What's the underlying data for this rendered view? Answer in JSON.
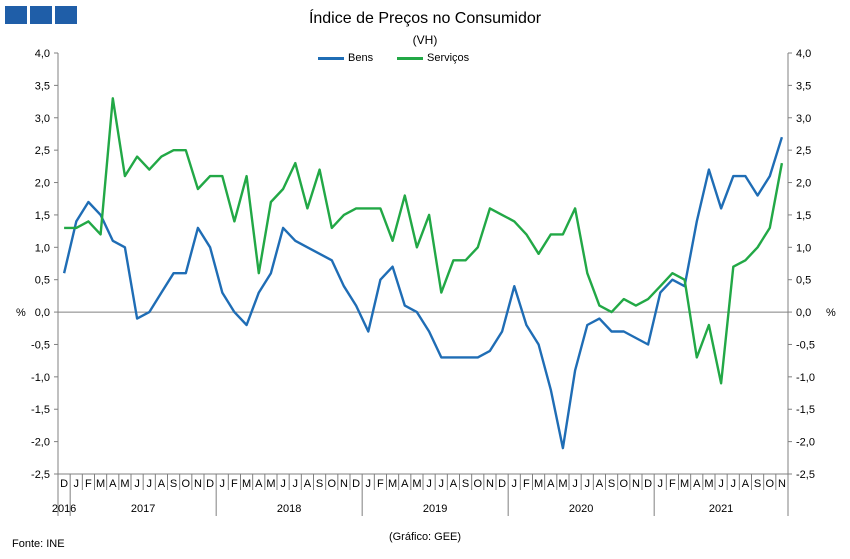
{
  "title": "Índice de Preços no Consumidor",
  "subtitle": "(VH)",
  "source": "Fonte: INE",
  "credit": "(Gráfico: GEE)",
  "colors": {
    "Bens": "#1f6db5",
    "Serviços": "#22a846",
    "logo": "#1f5ea8"
  },
  "chart_data": {
    "type": "line",
    "title": "Índice de Preços no Consumidor",
    "subtitle": "(VH)",
    "ylabel": "%",
    "ylim": [
      -2.5,
      4.0
    ],
    "ytick_step": 0.5,
    "ytick_labels": [
      "-2,5",
      "-2,0",
      "-1,5",
      "-1,0",
      "-0,5",
      "0,0",
      "0,5",
      "1,0",
      "1,5",
      "2,0",
      "2,5",
      "3,0",
      "3,5",
      "4,0"
    ],
    "grid": false,
    "legend": "top-center",
    "x_month_labels": [
      "D",
      "J",
      "F",
      "M",
      "A",
      "M",
      "J",
      "J",
      "A",
      "S",
      "O",
      "N",
      "D",
      "J",
      "F",
      "M",
      "A",
      "M",
      "J",
      "J",
      "A",
      "S",
      "O",
      "N",
      "D",
      "J",
      "F",
      "M",
      "A",
      "M",
      "J",
      "J",
      "A",
      "S",
      "O",
      "N",
      "D",
      "J",
      "F",
      "M",
      "A",
      "M",
      "J",
      "J",
      "A",
      "S",
      "O",
      "N",
      "D",
      "J",
      "F",
      "M",
      "A",
      "M",
      "J",
      "J",
      "A",
      "S",
      "O",
      "N"
    ],
    "year_labels": [
      {
        "label": "2016",
        "start": 0,
        "end": 0
      },
      {
        "label": "2017",
        "start": 1,
        "end": 12
      },
      {
        "label": "2018",
        "start": 13,
        "end": 24
      },
      {
        "label": "2019",
        "start": 25,
        "end": 36
      },
      {
        "label": "2020",
        "start": 37,
        "end": 48
      },
      {
        "label": "2021",
        "start": 49,
        "end": 59
      }
    ],
    "series": [
      {
        "name": "Bens",
        "values": [
          0.6,
          1.4,
          1.7,
          1.5,
          1.1,
          1.0,
          -0.1,
          0.0,
          0.3,
          0.6,
          0.6,
          1.3,
          1.0,
          0.3,
          0.0,
          -0.2,
          0.3,
          0.6,
          1.3,
          1.1,
          1.0,
          0.9,
          0.8,
          0.4,
          0.1,
          -0.3,
          0.5,
          0.7,
          0.1,
          0.0,
          -0.3,
          -0.7,
          -0.7,
          -0.7,
          -0.7,
          -0.6,
          -0.3,
          0.4,
          -0.2,
          -0.5,
          -1.2,
          -2.1,
          -0.9,
          -0.2,
          -0.1,
          -0.3,
          -0.3,
          -0.4,
          -0.5,
          0.3,
          0.5,
          0.4,
          1.4,
          2.2,
          1.6,
          2.1,
          2.1,
          1.8,
          2.1,
          2.7
        ]
      },
      {
        "name": "Serviços",
        "values": [
          1.3,
          1.3,
          1.4,
          1.2,
          3.3,
          2.1,
          2.4,
          2.2,
          2.4,
          2.5,
          2.5,
          1.9,
          2.1,
          2.1,
          1.4,
          2.1,
          0.6,
          1.7,
          1.9,
          2.3,
          1.6,
          2.2,
          1.3,
          1.5,
          1.6,
          1.6,
          1.6,
          1.1,
          1.8,
          1.0,
          1.5,
          0.3,
          0.8,
          0.8,
          1.0,
          1.6,
          1.5,
          1.4,
          1.2,
          0.9,
          1.2,
          1.2,
          1.6,
          0.6,
          0.1,
          0.0,
          0.2,
          0.1,
          0.2,
          0.4,
          0.6,
          0.5,
          -0.7,
          -0.2,
          -1.1,
          0.7,
          0.8,
          1.0,
          1.3,
          2.3
        ]
      }
    ]
  }
}
